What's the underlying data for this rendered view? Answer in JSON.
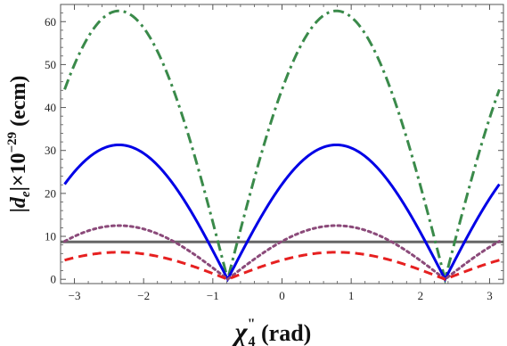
{
  "chart_data": {
    "type": "line",
    "title": "",
    "xlabel": "χ′′4 (rad)",
    "xlabel_parts": {
      "symbol": "χ",
      "primes": "\"",
      "subscript": "4",
      "unit": "(rad)"
    },
    "ylabel": "|de|×10−29 (ecm)",
    "ylabel_parts": {
      "left_bar": "|",
      "symbol": "d",
      "subscript": "e",
      "right_part": "|×10",
      "exponent": "−29",
      "unit": "(ecm)"
    },
    "xlim": [
      -3.2,
      3.2
    ],
    "ylim": [
      -1,
      64
    ],
    "x_ticks": [
      -3,
      -2,
      -1,
      0,
      1,
      2,
      3
    ],
    "x_tick_labels": [
      "−3",
      "−2",
      "−1",
      "0",
      "1",
      "2",
      "3"
    ],
    "y_ticks": [
      0,
      10,
      20,
      30,
      40,
      50,
      60
    ],
    "y_tick_labels": [
      "0",
      "10",
      "20",
      "30",
      "40",
      "50",
      "60"
    ],
    "grid": false,
    "legend": "none",
    "x_range_plotted": [
      -3.14159,
      3.14159
    ],
    "series": [
      {
        "style": "dash-dot",
        "color": "#3a8a4a",
        "peak": 62.5,
        "zero_at": [
          -0.785,
          2.356
        ]
      },
      {
        "style": "solid",
        "color": "#0000e6",
        "peak": 31.3,
        "zero_at": [
          -0.785,
          2.356
        ]
      },
      {
        "style": "dotted",
        "color": "#8b4a7a",
        "peak": 12.5,
        "zero_at": [
          -0.785,
          2.356
        ]
      },
      {
        "style": "dashed",
        "color": "#e62020",
        "peak": 6.3,
        "zero_at": [
          -0.785,
          2.356
        ]
      }
    ],
    "reference_line": {
      "y": 8.7,
      "color": "#666666",
      "style": "solid-thick"
    }
  }
}
